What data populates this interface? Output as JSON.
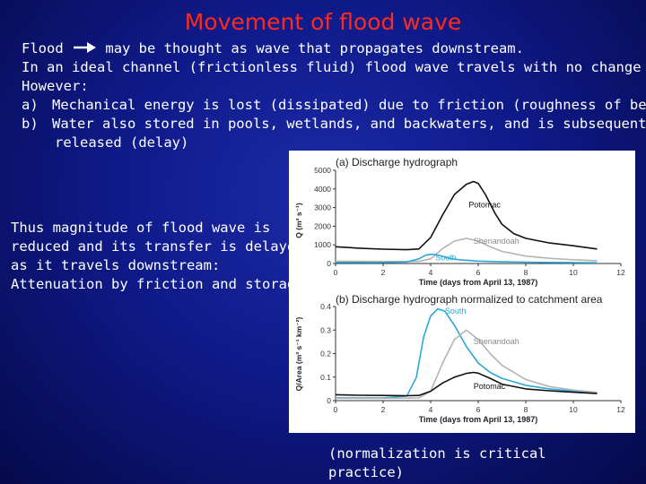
{
  "slide": {
    "title": "Movement of flood wave",
    "intro": {
      "line1_pre": "Flood",
      "line1_post": "may be thought as wave that propagates downstream.",
      "line2": "In an ideal channel (frictionless fluid) flood wave travels with no change",
      "line3": "However:",
      "items": [
        {
          "marker": "a)",
          "text": "Mechanical energy is lost (dissipated) due to friction (roughness of bed)"
        },
        {
          "marker": "b)",
          "text": "Water also stored in pools, wetlands, and backwaters, and is subsequently"
        }
      ],
      "item_b_cont": "released (delay)"
    },
    "side_text": [
      "Thus magnitude of flood wave is",
      "reduced and its transfer is delayed",
      "as it travels downstream:"
    ],
    "side_emphasis": "Attenuation by friction and storage",
    "footnote": "(normalization is critical practice)"
  },
  "chart_data": [
    {
      "type": "line",
      "title": "(a) Discharge hydrograph",
      "xlabel": "Time (days from April 13, 1987)",
      "ylabel": "Q (m³ s⁻¹)",
      "xlim": [
        0,
        12
      ],
      "ylim": [
        0,
        5000
      ],
      "xticks": [
        0,
        2,
        4,
        6,
        8,
        10,
        12
      ],
      "yticks": [
        0,
        1000,
        2000,
        3000,
        4000,
        5000
      ],
      "series": [
        {
          "name": "Potomac",
          "color": "#111111",
          "x": [
            0,
            1,
            2,
            3,
            3.5,
            4,
            4.5,
            5,
            5.5,
            5.8,
            6,
            6.3,
            6.7,
            7,
            7.5,
            8,
            9,
            10,
            11
          ],
          "y": [
            900,
            820,
            770,
            740,
            780,
            1400,
            2600,
            3700,
            4250,
            4400,
            4300,
            3700,
            2700,
            2100,
            1600,
            1350,
            1100,
            950,
            780
          ]
        },
        {
          "name": "Shenandoah",
          "color": "#b3b3b3",
          "x": [
            0,
            2,
            3.5,
            4,
            4.5,
            5,
            5.5,
            6,
            6.5,
            7,
            8,
            9,
            10,
            11
          ],
          "y": [
            120,
            110,
            110,
            250,
            800,
            1200,
            1350,
            1200,
            900,
            650,
            400,
            280,
            200,
            150
          ]
        },
        {
          "name": "South",
          "color": "#29a8d4",
          "x": [
            0,
            2,
            3,
            3.5,
            3.8,
            4.1,
            4.4,
            4.8,
            5.2,
            6,
            7,
            8,
            9,
            10,
            11
          ],
          "y": [
            60,
            60,
            80,
            250,
            450,
            500,
            420,
            280,
            200,
            130,
            90,
            70,
            60,
            50,
            40
          ]
        }
      ]
    },
    {
      "type": "line",
      "title": "(b) Discharge hydrograph normalized to catchment area",
      "xlabel": "Time (days from April 13, 1987)",
      "ylabel": "Q/Area (m³ s⁻¹ km⁻²)",
      "xlim": [
        0,
        12
      ],
      "ylim": [
        0,
        0.4
      ],
      "xticks": [
        0,
        2,
        4,
        6,
        8,
        10,
        12
      ],
      "yticks": [
        0,
        0.1,
        0.2,
        0.3,
        0.4
      ],
      "series": [
        {
          "name": "South",
          "color": "#29a8d4",
          "x": [
            0,
            2,
            3,
            3.4,
            3.7,
            4,
            4.3,
            4.6,
            5,
            5.5,
            6,
            6.5,
            7,
            8,
            9,
            10,
            11
          ],
          "y": [
            0.012,
            0.012,
            0.02,
            0.1,
            0.27,
            0.36,
            0.39,
            0.38,
            0.32,
            0.23,
            0.16,
            0.12,
            0.095,
            0.065,
            0.05,
            0.04,
            0.035
          ]
        },
        {
          "name": "Shenandoah",
          "color": "#b3b3b3",
          "x": [
            0,
            2,
            3.5,
            4,
            4.5,
            5,
            5.5,
            6,
            6.5,
            7,
            8,
            9,
            10,
            11
          ],
          "y": [
            0.01,
            0.01,
            0.012,
            0.04,
            0.16,
            0.26,
            0.3,
            0.26,
            0.2,
            0.15,
            0.09,
            0.06,
            0.045,
            0.035
          ]
        },
        {
          "name": "Potomac",
          "color": "#111111",
          "x": [
            0,
            1,
            2,
            3,
            3.5,
            4,
            4.5,
            5,
            5.5,
            5.8,
            6,
            6.5,
            7,
            8,
            9,
            10,
            11
          ],
          "y": [
            0.025,
            0.023,
            0.022,
            0.021,
            0.022,
            0.04,
            0.075,
            0.1,
            0.116,
            0.12,
            0.117,
            0.095,
            0.07,
            0.05,
            0.042,
            0.036,
            0.03
          ]
        }
      ]
    }
  ]
}
